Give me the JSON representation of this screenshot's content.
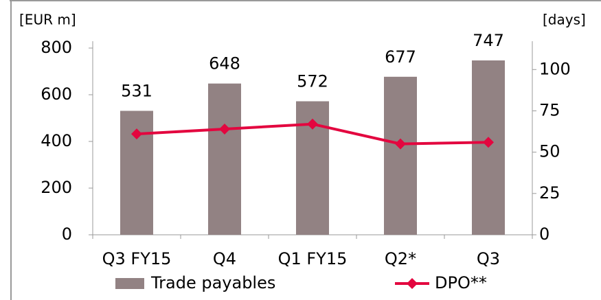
{
  "chart_data": {
    "type": "bar",
    "y_label": "[EUR m]",
    "y2_label": "[days]",
    "categories": [
      "Q3 FY15",
      "Q4",
      "Q1 FY15",
      "Q2*",
      "Q3"
    ],
    "series": [
      {
        "name": "Trade payables",
        "type": "bar",
        "color": "#928283",
        "values": [
          531,
          648,
          572,
          677,
          747
        ]
      },
      {
        "name": "DPO**",
        "type": "line",
        "color": "#e3063f",
        "axis": "y2",
        "values": [
          61,
          64,
          67,
          55,
          56
        ]
      }
    ],
    "ylim": [
      0,
      800
    ],
    "yticks": [
      0,
      200,
      400,
      600,
      800
    ],
    "y2lim": [
      0,
      113
    ],
    "y2ticks": [
      0,
      25,
      50,
      75,
      100
    ]
  }
}
